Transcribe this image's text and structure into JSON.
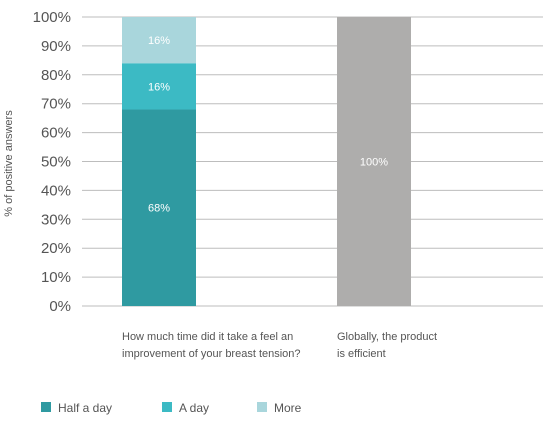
{
  "chart_data": {
    "type": "bar",
    "stacked": true,
    "ylabel": "% of positive answers",
    "ylim": [
      0,
      100
    ],
    "yticks": [
      "0%",
      "10%",
      "20%",
      "30%",
      "40%",
      "50%",
      "60%",
      "70%",
      "80%",
      "90%",
      "100%"
    ],
    "grid": true,
    "legend_position": "bottom-left",
    "categories": [
      [
        "How much time did it take a feel an",
        "improvement of your breast tension?"
      ],
      [
        "Globally, the product",
        "is efficient"
      ]
    ],
    "series": [
      {
        "name": "Half a day",
        "color": "#2f9aa1",
        "values": [
          68,
          null
        ],
        "labels": [
          "68%",
          null
        ]
      },
      {
        "name": "A day",
        "color": "#3cbac4",
        "values": [
          16,
          null
        ],
        "labels": [
          "16%",
          null
        ]
      },
      {
        "name": "More",
        "color": "#a9d6dc",
        "values": [
          16,
          null
        ],
        "labels": [
          "16%",
          null
        ]
      },
      {
        "name": "",
        "color": "#aeadac",
        "values": [
          null,
          100
        ],
        "labels": [
          null,
          "100%"
        ]
      }
    ],
    "legend": [
      "Half a day",
      "A day",
      "More"
    ]
  }
}
